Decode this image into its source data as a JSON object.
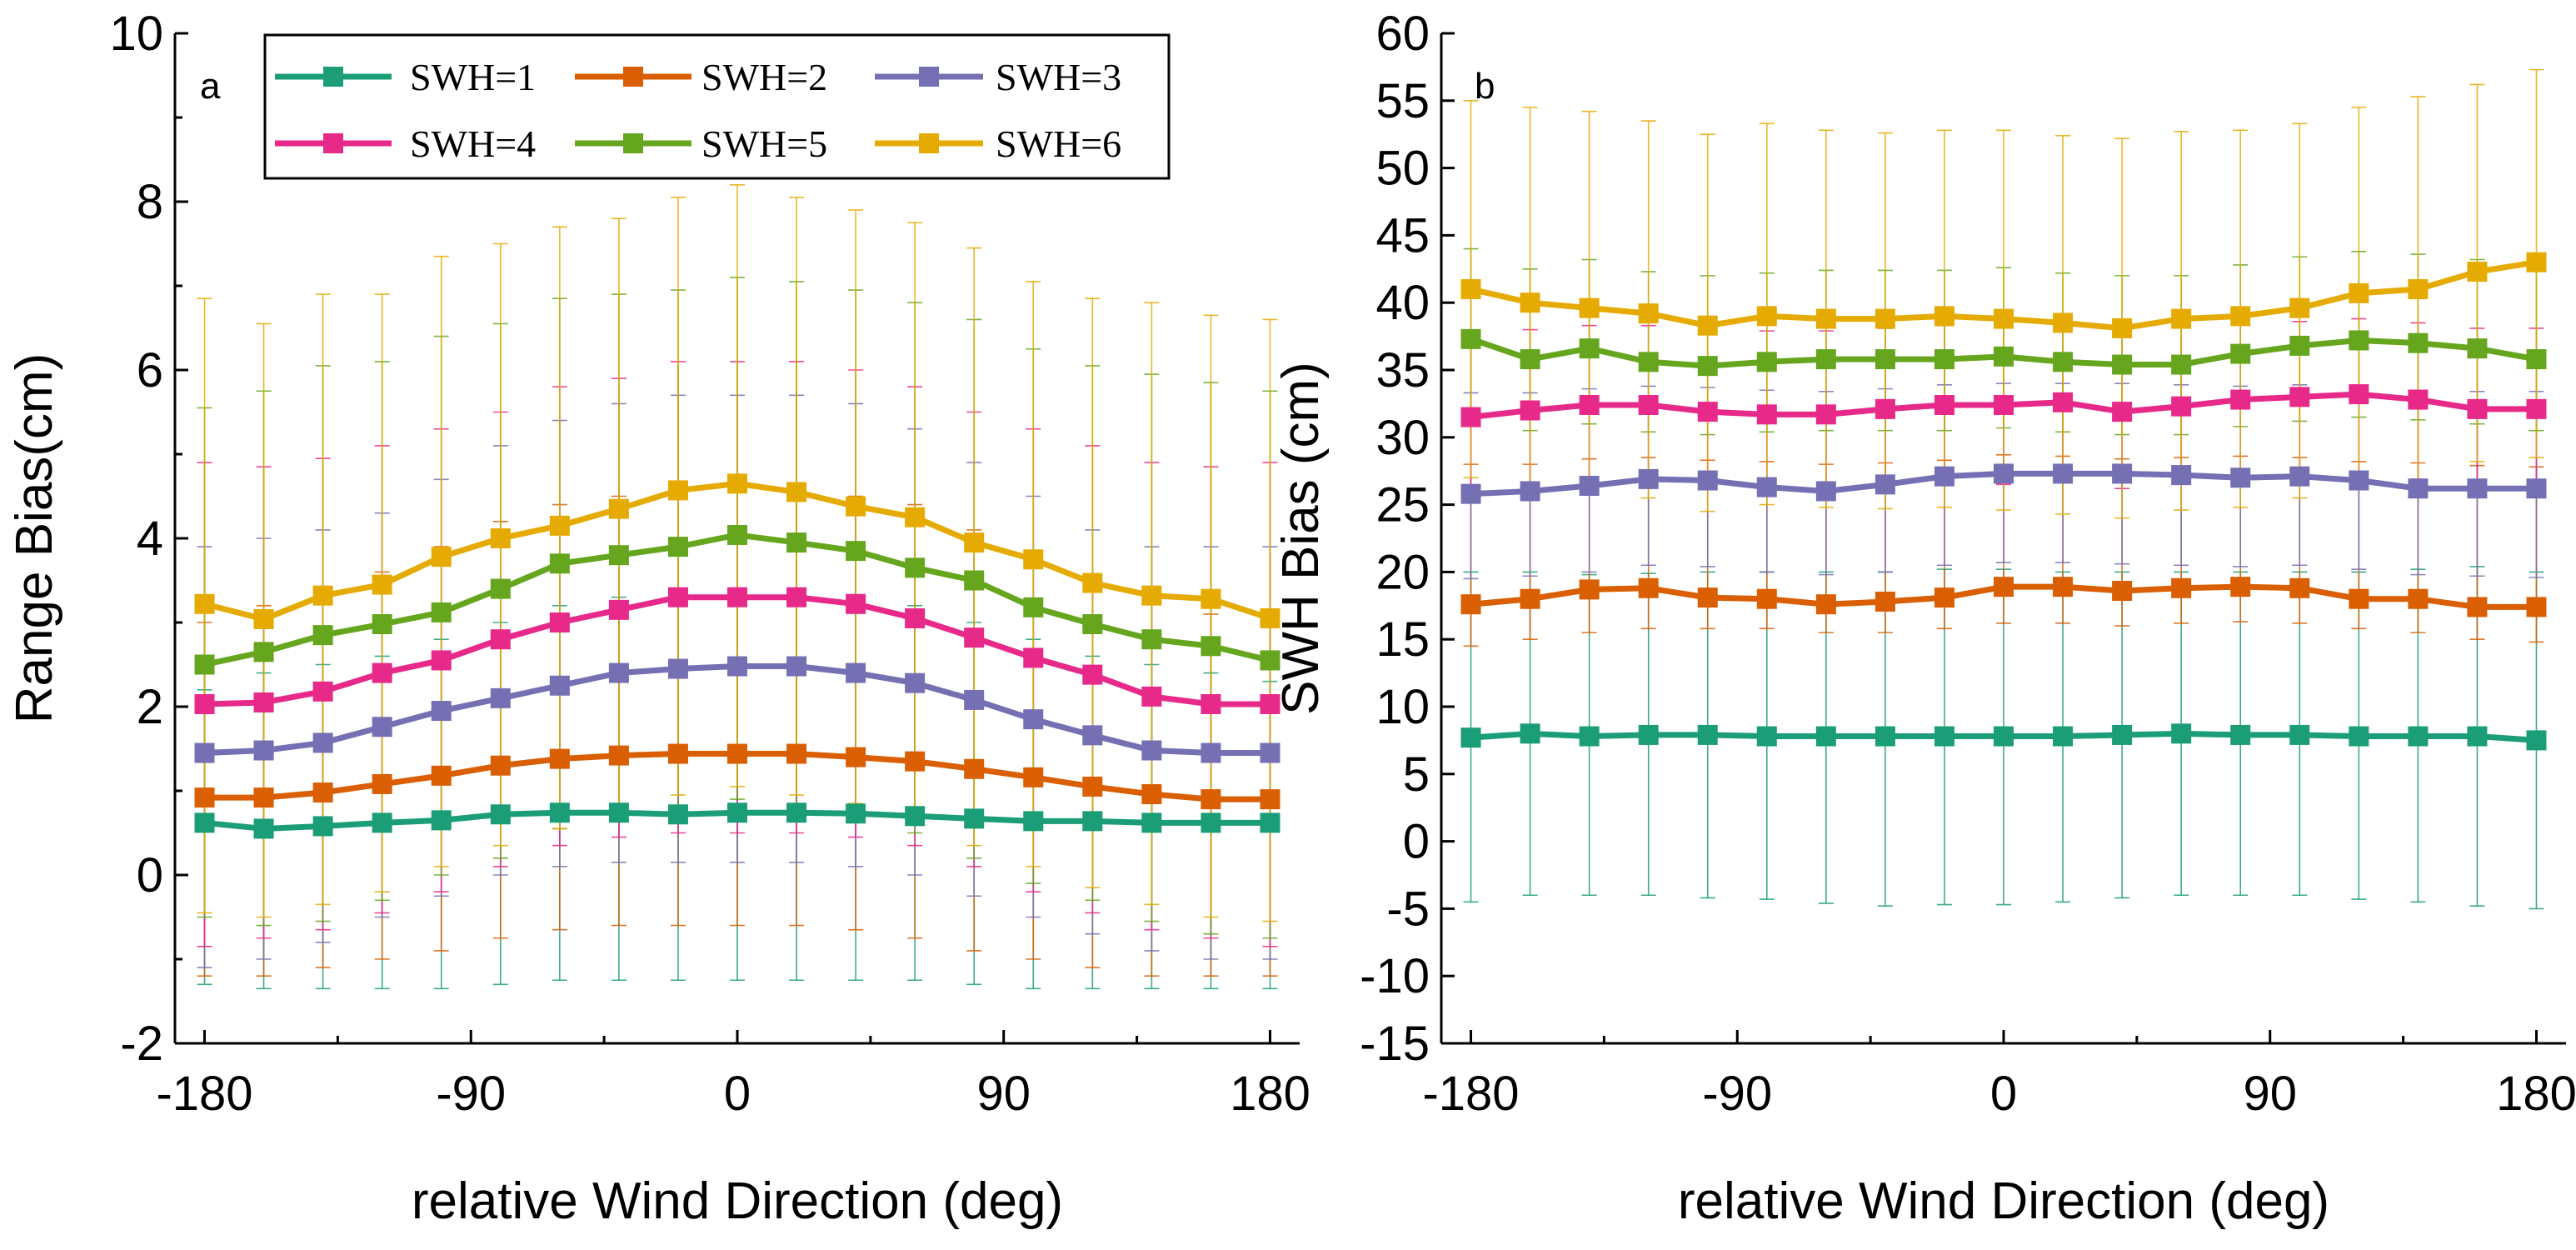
{
  "legend": [
    "SWH=1",
    "SWH=2",
    "SWH=3",
    "SWH=4",
    "SWH=5",
    "SWH=6"
  ],
  "colors": {
    "SWH=1": "#1b9e77",
    "SWH=2": "#d95f02",
    "SWH=3": "#7570b3",
    "SWH=4": "#e7298a",
    "SWH=5": "#66a61e",
    "SWH=6": "#e6ab02"
  },
  "chart_data": [
    {
      "type": "line",
      "panel": "a",
      "title": "",
      "xlabel": "relative Wind Direction (deg)",
      "ylabel": "Range Bias(cm)",
      "xlim": [
        -190,
        190
      ],
      "ylim": [
        -2,
        10
      ],
      "xticks": [
        -180,
        -90,
        0,
        90,
        180
      ],
      "xtick_labels": [
        "-180",
        "-90",
        "0",
        "90",
        "180"
      ],
      "yticks": [
        -2,
        0,
        2,
        4,
        6,
        8,
        10
      ],
      "ytick_labels": [
        "-2",
        "0",
        "2",
        "4",
        "6",
        "8",
        "10"
      ],
      "grid": false,
      "legend_position": "top-left",
      "x": [
        -180,
        -160,
        -140,
        -120,
        -100,
        -80,
        -60,
        -40,
        -20,
        0,
        20,
        40,
        60,
        80,
        100,
        120,
        140,
        160,
        180
      ],
      "series": [
        {
          "name": "SWH=1",
          "values": [
            0.62,
            0.55,
            0.58,
            0.62,
            0.65,
            0.72,
            0.74,
            0.74,
            0.72,
            0.74,
            0.74,
            0.73,
            0.7,
            0.67,
            0.64,
            0.64,
            0.62,
            0.62,
            0.62
          ],
          "err_low": [
            -1.3,
            -1.35,
            -1.35,
            -1.35,
            -1.35,
            -1.3,
            -1.25,
            -1.25,
            -1.25,
            -1.25,
            -1.25,
            -1.25,
            -1.25,
            -1.3,
            -1.35,
            -1.35,
            -1.35,
            -1.35,
            -1.35
          ],
          "err_high": [
            2.2,
            2.4,
            2.5,
            2.6,
            2.8,
            3.0,
            3.2,
            3.3,
            3.3,
            3.4,
            3.4,
            3.3,
            3.2,
            3.0,
            2.8,
            2.6,
            2.5,
            2.4,
            2.3
          ]
        },
        {
          "name": "SWH=2",
          "values": [
            0.92,
            0.92,
            0.98,
            1.08,
            1.18,
            1.3,
            1.38,
            1.42,
            1.44,
            1.44,
            1.44,
            1.4,
            1.35,
            1.26,
            1.16,
            1.05,
            0.96,
            0.9,
            0.9
          ],
          "err_low": [
            -1.2,
            -1.2,
            -1.1,
            -1.0,
            -0.9,
            -0.75,
            -0.65,
            -0.6,
            -0.6,
            -0.6,
            -0.6,
            -0.65,
            -0.75,
            -0.9,
            -1.0,
            -1.1,
            -1.2,
            -1.2,
            -1.2
          ],
          "err_high": [
            3.0,
            3.2,
            3.4,
            3.6,
            3.9,
            4.2,
            4.4,
            4.5,
            4.6,
            4.6,
            4.6,
            4.5,
            4.4,
            4.1,
            3.8,
            3.5,
            3.3,
            3.1,
            3.0
          ]
        },
        {
          "name": "SWH=3",
          "values": [
            1.45,
            1.48,
            1.57,
            1.76,
            1.95,
            2.1,
            2.25,
            2.4,
            2.45,
            2.48,
            2.48,
            2.4,
            2.28,
            2.08,
            1.85,
            1.66,
            1.48,
            1.45,
            1.45
          ],
          "err_low": [
            -1.1,
            -1.0,
            -0.8,
            -0.5,
            -0.25,
            0.0,
            0.1,
            0.15,
            0.15,
            0.15,
            0.15,
            0.1,
            0.0,
            -0.25,
            -0.5,
            -0.7,
            -0.9,
            -1.0,
            -1.0
          ],
          "err_high": [
            3.9,
            4.0,
            4.1,
            4.3,
            4.7,
            5.1,
            5.4,
            5.6,
            5.7,
            5.7,
            5.7,
            5.6,
            5.3,
            4.9,
            4.5,
            4.1,
            3.9,
            3.9,
            3.9
          ]
        },
        {
          "name": "SWH=4",
          "values": [
            2.03,
            2.05,
            2.18,
            2.4,
            2.55,
            2.8,
            3.0,
            3.15,
            3.3,
            3.3,
            3.3,
            3.22,
            3.05,
            2.82,
            2.58,
            2.38,
            2.12,
            2.03,
            2.03
          ],
          "err_low": [
            -0.85,
            -0.75,
            -0.65,
            -0.45,
            -0.2,
            0.1,
            0.35,
            0.45,
            0.5,
            0.5,
            0.5,
            0.45,
            0.35,
            0.1,
            -0.2,
            -0.45,
            -0.65,
            -0.75,
            -0.85
          ],
          "err_high": [
            4.9,
            4.85,
            4.95,
            5.1,
            5.3,
            5.5,
            5.8,
            5.9,
            6.1,
            6.1,
            6.1,
            6.0,
            5.8,
            5.5,
            5.3,
            5.1,
            4.9,
            4.85,
            4.9
          ]
        },
        {
          "name": "SWH=5",
          "values": [
            2.5,
            2.65,
            2.85,
            2.98,
            3.12,
            3.4,
            3.7,
            3.8,
            3.9,
            4.04,
            3.95,
            3.85,
            3.65,
            3.5,
            3.18,
            2.98,
            2.8,
            2.72,
            2.55
          ],
          "err_low": [
            -0.5,
            -0.6,
            -0.55,
            -0.3,
            0.0,
            0.2,
            0.55,
            0.7,
            0.8,
            0.9,
            0.8,
            0.7,
            0.5,
            0.2,
            -0.1,
            -0.3,
            -0.55,
            -0.7,
            -0.75
          ],
          "err_high": [
            5.55,
            5.75,
            6.05,
            6.1,
            6.4,
            6.55,
            6.85,
            6.9,
            6.95,
            7.1,
            7.05,
            6.95,
            6.8,
            6.6,
            6.25,
            6.05,
            5.95,
            5.85,
            5.75
          ]
        },
        {
          "name": "SWH=6",
          "values": [
            3.22,
            3.04,
            3.32,
            3.45,
            3.78,
            4.0,
            4.15,
            4.35,
            4.57,
            4.65,
            4.55,
            4.38,
            4.25,
            3.95,
            3.75,
            3.47,
            3.32,
            3.28,
            3.05
          ],
          "err_low": [
            -0.45,
            -0.5,
            -0.35,
            -0.2,
            0.1,
            0.35,
            0.55,
            0.8,
            0.95,
            1.05,
            0.95,
            0.85,
            0.7,
            0.35,
            0.1,
            -0.15,
            -0.35,
            -0.5,
            -0.55
          ],
          "err_high": [
            6.85,
            6.55,
            6.9,
            6.9,
            7.35,
            7.5,
            7.7,
            7.8,
            8.05,
            8.2,
            8.05,
            7.9,
            7.75,
            7.45,
            7.05,
            6.85,
            6.8,
            6.65,
            6.6
          ]
        }
      ]
    },
    {
      "type": "line",
      "panel": "b",
      "title": "",
      "xlabel": "relative Wind Direction (deg)",
      "ylabel": "SWH Bias (cm)",
      "xlim": [
        -190,
        190
      ],
      "ylim": [
        -15,
        60
      ],
      "xticks": [
        -180,
        -90,
        0,
        90,
        180
      ],
      "xtick_labels": [
        "-180",
        "-90",
        "0",
        "90",
        "180"
      ],
      "yticks": [
        -15,
        -10,
        -5,
        0,
        5,
        10,
        15,
        20,
        25,
        30,
        35,
        40,
        45,
        50,
        55,
        60
      ],
      "ytick_labels": [
        "-15",
        "-10",
        "-5",
        "0",
        "5",
        "10",
        "15",
        "20",
        "25",
        "30",
        "35",
        "40",
        "45",
        "50",
        "55",
        "60"
      ],
      "grid": false,
      "x": [
        -180,
        -160,
        -140,
        -120,
        -100,
        -80,
        -60,
        -40,
        -20,
        0,
        20,
        40,
        60,
        80,
        100,
        120,
        140,
        160,
        180
      ],
      "series": [
        {
          "name": "SWH=1",
          "values": [
            7.7,
            8.0,
            7.8,
            7.9,
            7.9,
            7.8,
            7.8,
            7.8,
            7.8,
            7.8,
            7.8,
            7.9,
            8.0,
            7.9,
            7.9,
            7.8,
            7.8,
            7.8,
            7.5
          ],
          "err_low": [
            -4.5,
            -4.0,
            -4.0,
            -4.0,
            -4.2,
            -4.3,
            -4.6,
            -4.8,
            -4.7,
            -4.7,
            -4.5,
            -4.2,
            -4.0,
            -4.0,
            -4.0,
            -4.3,
            -4.5,
            -4.8,
            -5.0
          ],
          "err_high": [
            20.0,
            20.0,
            19.8,
            19.9,
            20.0,
            20.0,
            20.0,
            20.0,
            20.2,
            20.2,
            20.0,
            20.0,
            20.0,
            20.0,
            20.0,
            20.0,
            20.2,
            20.4,
            20.0
          ]
        },
        {
          "name": "SWH=2",
          "values": [
            17.6,
            18.0,
            18.7,
            18.8,
            18.1,
            18.0,
            17.6,
            17.8,
            18.1,
            18.9,
            18.9,
            18.6,
            18.8,
            18.9,
            18.8,
            18.0,
            18.0,
            17.4,
            17.4
          ],
          "err_low": [
            14.5,
            15.0,
            15.5,
            15.8,
            15.8,
            15.8,
            15.5,
            15.5,
            15.8,
            16.2,
            16.2,
            16.0,
            16.2,
            16.3,
            16.2,
            15.8,
            15.5,
            15.0,
            14.8
          ],
          "err_high": [
            28.0,
            28.0,
            28.4,
            28.5,
            28.3,
            28.2,
            28.0,
            28.1,
            28.3,
            28.7,
            28.6,
            28.4,
            28.5,
            28.6,
            28.5,
            28.2,
            28.1,
            27.9,
            27.8
          ]
        },
        {
          "name": "SWH=3",
          "values": [
            25.8,
            26.0,
            26.4,
            26.9,
            26.8,
            26.3,
            26.0,
            26.5,
            27.1,
            27.3,
            27.3,
            27.3,
            27.2,
            27.0,
            27.1,
            26.8,
            26.2,
            26.2,
            26.2
          ],
          "err_low": [
            19.5,
            19.7,
            20.0,
            20.5,
            20.4,
            20.0,
            19.8,
            20.0,
            20.5,
            20.7,
            20.7,
            20.6,
            20.5,
            20.4,
            20.5,
            20.2,
            19.8,
            19.7,
            19.6
          ],
          "err_high": [
            33.3,
            33.3,
            33.6,
            33.8,
            33.7,
            33.5,
            33.4,
            33.6,
            33.9,
            34.0,
            34.0,
            34.0,
            33.9,
            33.8,
            33.9,
            33.7,
            33.5,
            33.4,
            33.4
          ]
        },
        {
          "name": "SWH=4",
          "values": [
            31.5,
            32.0,
            32.4,
            32.4,
            31.9,
            31.7,
            31.7,
            32.1,
            32.4,
            32.4,
            32.6,
            31.9,
            32.3,
            32.8,
            33.0,
            33.2,
            32.8,
            32.1,
            32.1
          ],
          "err_low": [
            26.0,
            26.2,
            26.5,
            26.5,
            26.2,
            26.0,
            26.0,
            26.3,
            26.5,
            26.5,
            26.7,
            26.2,
            26.5,
            26.9,
            27.0,
            27.2,
            26.9,
            26.4,
            26.4
          ],
          "err_high": [
            37.8,
            38.0,
            38.3,
            38.3,
            38.0,
            37.9,
            37.9,
            38.1,
            38.3,
            38.3,
            38.4,
            38.0,
            38.2,
            38.5,
            38.6,
            38.8,
            38.5,
            38.1,
            38.1
          ]
        },
        {
          "name": "SWH=5",
          "values": [
            37.3,
            35.8,
            36.6,
            35.6,
            35.3,
            35.6,
            35.8,
            35.8,
            35.8,
            36.0,
            35.6,
            35.4,
            35.4,
            36.2,
            36.8,
            37.2,
            37.0,
            36.6,
            35.8
          ],
          "err_low": [
            31.5,
            30.5,
            31.0,
            30.4,
            30.2,
            30.4,
            30.5,
            30.5,
            30.5,
            30.7,
            30.4,
            30.2,
            30.2,
            30.8,
            31.2,
            31.5,
            31.3,
            31.0,
            30.5
          ],
          "err_high": [
            44.0,
            42.5,
            43.2,
            42.3,
            42.0,
            42.2,
            42.4,
            42.4,
            42.4,
            42.6,
            42.2,
            42.0,
            42.0,
            42.8,
            43.4,
            43.8,
            43.6,
            43.2,
            42.4
          ]
        },
        {
          "name": "SWH=6",
          "values": [
            41.0,
            40.0,
            39.6,
            39.2,
            38.3,
            39.0,
            38.8,
            38.8,
            39.0,
            38.8,
            38.5,
            38.1,
            38.8,
            39.0,
            39.6,
            40.7,
            41.0,
            42.3,
            43.0
          ],
          "err_low": [
            27.0,
            26.2,
            26.0,
            25.5,
            24.5,
            25.0,
            24.8,
            24.7,
            24.8,
            24.6,
            24.3,
            24.0,
            24.6,
            24.8,
            25.5,
            26.5,
            26.8,
            28.2,
            28.5
          ],
          "err_high": [
            55.0,
            54.5,
            54.2,
            53.5,
            52.5,
            53.3,
            52.8,
            52.6,
            52.8,
            52.8,
            52.4,
            52.2,
            52.7,
            52.8,
            53.3,
            54.5,
            55.3,
            56.2,
            57.3
          ]
        }
      ]
    }
  ]
}
